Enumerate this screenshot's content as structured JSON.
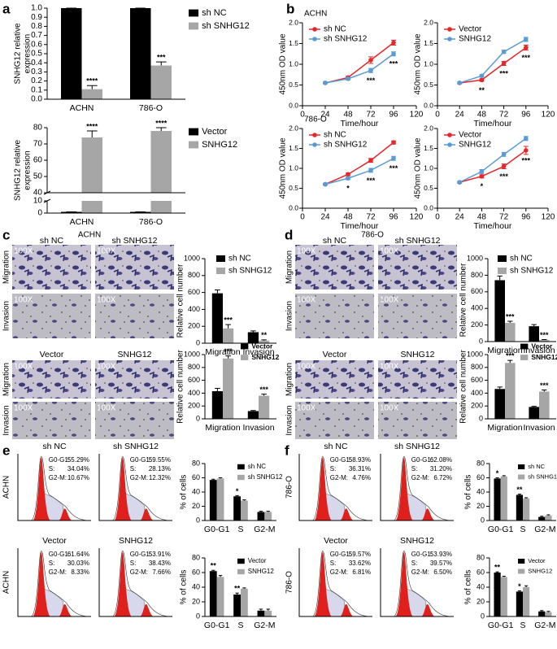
{
  "panel_labels": [
    "a",
    "b",
    "c",
    "d",
    "e",
    "f"
  ],
  "chart_data": [
    {
      "type": "bar",
      "ylabel": [
        "SNHG12 relative",
        "expression"
      ],
      "categories": [
        "ACHN",
        "786-O"
      ],
      "ylim": [
        0,
        1
      ],
      "yticks": [
        {
          "value": 0,
          "label": "0.0"
        },
        0.1,
        0.2,
        0.3,
        0.4,
        0.5,
        0.6,
        0.7,
        0.8,
        0.9,
        {
          "value": 1,
          "label": "1.0"
        }
      ],
      "series": [
        {
          "name": "sh NC",
          "color": "#000000",
          "values": [
            1,
            1
          ],
          "errors": [
            0,
            0
          ]
        },
        {
          "name": "sh SNHG12",
          "color": "#a6a6a6",
          "values": [
            0.11,
            0.37
          ],
          "errors": [
            0.04,
            0.04
          ],
          "stars": [
            "****",
            "***"
          ]
        }
      ]
    },
    {
      "type": "bar",
      "ylabel": [
        "SNHG12 relative",
        "expression"
      ],
      "categories": [
        "ACHN",
        "786-O"
      ],
      "ylim": [
        0,
        80
      ],
      "ybreak": [
        10,
        40
      ],
      "yticks": [
        0,
        10,
        40,
        50,
        60,
        70,
        80
      ],
      "series": [
        {
          "name": "Vector",
          "color": "#000000",
          "values": [
            1,
            1
          ],
          "errors": [
            0,
            0
          ]
        },
        {
          "name": "SNHG12",
          "color": "#a6a6a6",
          "values": [
            74,
            78
          ],
          "errors": [
            4,
            2
          ],
          "stars": [
            "****",
            "****"
          ]
        }
      ]
    },
    {
      "type": "line",
      "title": "ACHN",
      "xlabel": "Time/hour",
      "ylabel": "450nm OD value",
      "x": [
        24,
        48,
        72,
        96
      ],
      "xlim": [
        0,
        120
      ],
      "xticks": [
        0,
        24,
        48,
        72,
        96,
        120
      ],
      "ylim": [
        0,
        2
      ],
      "yticks": [
        {
          "value": 0,
          "label": "0.0"
        },
        0.5,
        {
          "value": 1,
          "label": "1.0"
        },
        1.5,
        {
          "value": 2,
          "label": "2.0"
        }
      ],
      "series": [
        {
          "name": "sh NC",
          "color": "#e8262a",
          "values": [
            0.55,
            0.68,
            1.1,
            1.52
          ],
          "errors": [
            0.02,
            0.03,
            0.08,
            0.06
          ]
        },
        {
          "name": "sh SNHG12",
          "color": "#5b9bd5",
          "values": [
            0.55,
            0.65,
            0.85,
            1.25
          ],
          "errors": [
            0.02,
            0.03,
            0.05,
            0.05
          ]
        }
      ],
      "stars": [
        null,
        null,
        "***",
        "***"
      ]
    },
    {
      "type": "line",
      "xlabel": "Time/hour",
      "ylabel": "450nm OD value",
      "x": [
        24,
        48,
        72,
        96
      ],
      "xlim": [
        0,
        120
      ],
      "xticks": [
        0,
        24,
        48,
        72,
        96,
        120
      ],
      "ylim": [
        0,
        2
      ],
      "yticks": [
        {
          "value": 0,
          "label": "0.0"
        },
        0.5,
        {
          "value": 1,
          "label": "1.0"
        },
        1.5,
        {
          "value": 2,
          "label": "2.0"
        }
      ],
      "series": [
        {
          "name": "Vector",
          "color": "#e8262a",
          "values": [
            0.55,
            0.62,
            1.02,
            1.4
          ],
          "errors": [
            0.02,
            0.03,
            0.05,
            0.06
          ]
        },
        {
          "name": "SNHG12",
          "color": "#5b9bd5",
          "values": [
            0.55,
            0.72,
            1.3,
            1.6
          ],
          "errors": [
            0.02,
            0.03,
            0.04,
            0.05
          ]
        }
      ],
      "stars": [
        null,
        "**",
        "***",
        "***"
      ]
    },
    {
      "type": "line",
      "title": "786-O",
      "xlabel": "Time/hour",
      "ylabel": "450nm OD value",
      "x": [
        24,
        48,
        72,
        96
      ],
      "xlim": [
        0,
        120
      ],
      "xticks": [
        0,
        24,
        48,
        72,
        96,
        120
      ],
      "ylim": [
        0,
        2
      ],
      "yticks": [
        {
          "value": 0,
          "label": "0.0"
        },
        0.5,
        {
          "value": 1,
          "label": "1.0"
        },
        1.5,
        {
          "value": 2,
          "label": "2.0"
        }
      ],
      "series": [
        {
          "name": "sh NC",
          "color": "#e8262a",
          "values": [
            0.6,
            0.85,
            1.2,
            1.65
          ],
          "errors": [
            0.02,
            0.03,
            0.05,
            0.04
          ]
        },
        {
          "name": "sh SNHG12",
          "color": "#5b9bd5",
          "values": [
            0.6,
            0.75,
            0.95,
            1.25
          ],
          "errors": [
            0.02,
            0.03,
            0.05,
            0.05
          ]
        }
      ],
      "stars": [
        null,
        "*",
        "***",
        "***"
      ]
    },
    {
      "type": "line",
      "xlabel": "Time/hour",
      "ylabel": "450nm OD value",
      "x": [
        24,
        48,
        72,
        96
      ],
      "xlim": [
        0,
        120
      ],
      "xticks": [
        0,
        24,
        48,
        72,
        96,
        120
      ],
      "ylim": [
        0,
        2
      ],
      "yticks": [
        {
          "value": 0,
          "label": "0.0"
        },
        0.5,
        {
          "value": 1,
          "label": "1.0"
        },
        1.5,
        {
          "value": 2,
          "label": "2.0"
        }
      ],
      "series": [
        {
          "name": "Vector",
          "color": "#e8262a",
          "values": [
            0.65,
            0.8,
            1.05,
            1.45
          ],
          "errors": [
            0.02,
            0.04,
            0.06,
            0.1
          ]
        },
        {
          "name": "SNHG12",
          "color": "#5b9bd5",
          "values": [
            0.65,
            0.92,
            1.35,
            1.75
          ],
          "errors": [
            0.02,
            0.05,
            0.05,
            0.05
          ]
        }
      ],
      "stars": [
        null,
        "*",
        "***",
        "***"
      ]
    },
    {
      "type": "bar",
      "ylabel": "Relative cell number",
      "categories": [
        "Migration",
        "Invasion"
      ],
      "ylim": [
        0,
        1000
      ],
      "yticks": [
        0,
        200,
        400,
        600,
        800,
        1000
      ],
      "series": [
        {
          "name": "sh NC",
          "color": "#000000",
          "values": [
            590,
            130
          ],
          "errors": [
            40,
            15
          ]
        },
        {
          "name": "sh SNHG12",
          "color": "#a6a6a6",
          "values": [
            175,
            30
          ],
          "errors": [
            45,
            10
          ],
          "stars": [
            "***",
            "**"
          ]
        }
      ]
    },
    {
      "type": "bar",
      "ylabel": "Relative cell number",
      "categories": [
        "Migration",
        "Invasion"
      ],
      "ylim": [
        0,
        1000
      ],
      "yticks": [
        0,
        200,
        400,
        600,
        800,
        1000
      ],
      "series": [
        {
          "name": "Vector",
          "color": "#000000",
          "values": [
            430,
            120
          ],
          "errors": [
            45,
            10
          ]
        },
        {
          "name": "SNHG12",
          "color": "#a6a6a6",
          "values": [
            940,
            360
          ],
          "errors": [
            40,
            25
          ],
          "stars": [
            "***",
            "***"
          ]
        }
      ]
    },
    {
      "type": "bar",
      "ylabel": "Relative cell number",
      "categories": [
        "Migration",
        "Invasion"
      ],
      "ylim": [
        0,
        1000
      ],
      "yticks": [
        0,
        200,
        400,
        600,
        800,
        1000
      ],
      "series": [
        {
          "name": "sh NC",
          "color": "#000000",
          "values": [
            740,
            185
          ],
          "errors": [
            50,
            20
          ]
        },
        {
          "name": "sh SNHG12",
          "color": "#a6a6a6",
          "values": [
            225,
            20
          ],
          "errors": [
            20,
            5
          ],
          "stars": [
            "***",
            "***"
          ]
        }
      ]
    },
    {
      "type": "bar",
      "ylabel": "Relative cell number",
      "categories": [
        "Migration",
        "Invasion"
      ],
      "ylim": [
        0,
        1000
      ],
      "yticks": [
        0,
        200,
        400,
        600,
        800,
        1000
      ],
      "series": [
        {
          "name": "Vector",
          "color": "#000000",
          "values": [
            465,
            185
          ],
          "errors": [
            30,
            10
          ]
        },
        {
          "name": "SNHG12",
          "color": "#a6a6a6",
          "values": [
            870,
            425
          ],
          "errors": [
            40,
            25
          ],
          "stars": [
            "***",
            "***"
          ]
        }
      ]
    },
    {
      "type": "bar",
      "ylabel": "% of cells",
      "categories": [
        "G0-G1",
        "S",
        "G2-M"
      ],
      "ylim": [
        0,
        80
      ],
      "yticks": [
        0,
        20,
        40,
        60,
        80
      ],
      "series": [
        {
          "name": "sh NC",
          "color": "#000000",
          "values": [
            57,
            34,
            12
          ],
          "errors": [
            1,
            1,
            1
          ],
          "stars": [
            null,
            "*",
            null
          ]
        },
        {
          "name": "sh SNHG12",
          "color": "#a6a6a6",
          "values": [
            59,
            28,
            12
          ],
          "errors": [
            1,
            1,
            1
          ]
        }
      ]
    },
    {
      "type": "bar",
      "ylabel": "% of cells",
      "categories": [
        "G0-G1",
        "S",
        "G2-M"
      ],
      "ylim": [
        0,
        80
      ],
      "yticks": [
        0,
        20,
        40,
        60,
        80
      ],
      "series": [
        {
          "name": "Vector",
          "color": "#000000",
          "values": [
            62,
            30,
            8
          ],
          "errors": [
            1,
            2,
            2
          ],
          "stars": [
            "**",
            "**",
            null
          ]
        },
        {
          "name": "SNHG12",
          "color": "#a6a6a6",
          "values": [
            54,
            38,
            8
          ],
          "errors": [
            2,
            1,
            2
          ]
        }
      ]
    },
    {
      "type": "bar",
      "ylabel": "% of cells",
      "categories": [
        "G0-G1",
        "S",
        "G2-M"
      ],
      "ylim": [
        0,
        80
      ],
      "yticks": [
        0,
        20,
        40,
        60,
        80
      ],
      "series": [
        {
          "name": "sh NC",
          "color": "#000000",
          "values": [
            59,
            36,
            5
          ],
          "errors": [
            1,
            1,
            1
          ],
          "stars": [
            "*",
            "**",
            null
          ]
        },
        {
          "name": "sh SNHG12",
          "color": "#a6a6a6",
          "values": [
            62,
            31,
            7
          ],
          "errors": [
            1,
            1,
            1
          ]
        }
      ]
    },
    {
      "type": "bar",
      "ylabel": "% of cells",
      "categories": [
        "G0-G1",
        "S",
        "G2-M"
      ],
      "ylim": [
        0,
        80
      ],
      "yticks": [
        0,
        20,
        40,
        60,
        80
      ],
      "series": [
        {
          "name": "Vector",
          "color": "#000000",
          "values": [
            60,
            34,
            7
          ],
          "errors": [
            1,
            1,
            1
          ],
          "stars": [
            "**",
            "*",
            null
          ]
        },
        {
          "name": "SNHG12",
          "color": "#a6a6a6",
          "values": [
            54,
            40,
            6
          ],
          "errors": [
            1,
            2,
            1
          ]
        }
      ]
    }
  ],
  "micrographs": [
    {
      "title": "ACHN",
      "magnification": "100X",
      "groups": [
        {
          "columns": [
            "sh NC",
            "sh SNHG12"
          ],
          "rows": [
            "Migration",
            "Invasion"
          ]
        },
        {
          "columns": [
            "Vector",
            "SNHG12"
          ],
          "rows": [
            "Migration",
            "Invasion"
          ]
        }
      ]
    },
    {
      "title": "786-O",
      "magnification": "100X",
      "groups": [
        {
          "columns": [
            "sh NC",
            "sh SNHG12"
          ],
          "rows": [
            "Migration",
            "Invasion"
          ]
        },
        {
          "columns": [
            "Vector",
            "SNHG12"
          ],
          "rows": [
            "Migration",
            "Invasion"
          ]
        }
      ]
    }
  ],
  "flow": [
    {
      "row_labels": [
        "ACHN",
        "ACHN"
      ],
      "plots": [
        {
          "title": "sh NC",
          "lines": [
            [
              "G0-G1:",
              "55.29%"
            ],
            [
              "S:",
              "34.04%"
            ],
            [
              "G2-M:",
              "10.67%"
            ]
          ]
        },
        {
          "title": "sh SNHG12",
          "lines": [
            [
              "G0-G1:",
              "59.55%"
            ],
            [
              "S:",
              "28.13%"
            ],
            [
              "G2-M:",
              "12.32%"
            ]
          ]
        },
        {
          "title": "Vector",
          "lines": [
            [
              "G0-G1:",
              "61.64%"
            ],
            [
              "S:",
              "30.03%"
            ],
            [
              "G2-M:",
              "8.33%"
            ]
          ]
        },
        {
          "title": "SNHG12",
          "lines": [
            [
              "G0-G1:",
              "53.91%"
            ],
            [
              "S:",
              "38.43%"
            ],
            [
              "G2-M:",
              "7.66%"
            ]
          ]
        }
      ]
    },
    {
      "row_labels": [
        "786-O",
        "786-O"
      ],
      "plots": [
        {
          "title": "sh NC",
          "lines": [
            [
              "G0-G1:",
              "58.93%"
            ],
            [
              "S:",
              "36.31%"
            ],
            [
              "G2-M:",
              "4.76%"
            ]
          ]
        },
        {
          "title": "sh SNHG12",
          "lines": [
            [
              "G0-G1:",
              "62.08%"
            ],
            [
              "S:",
              "31.20%"
            ],
            [
              "G2-M:",
              "6.72%"
            ]
          ]
        },
        {
          "title": "Vector",
          "lines": [
            [
              "G0-G1:",
              "59.57%"
            ],
            [
              "S:",
              "33.62%"
            ],
            [
              "G2-M:",
              "6.81%"
            ]
          ]
        },
        {
          "title": "SNHG12",
          "lines": [
            [
              "G0-G1:",
              "53.93%"
            ],
            [
              "S:",
              "39.57%"
            ],
            [
              "G2-M:",
              "6.50%"
            ]
          ]
        }
      ]
    }
  ]
}
